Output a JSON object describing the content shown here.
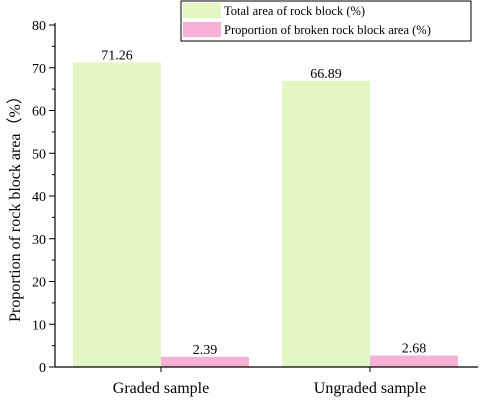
{
  "chart_data": {
    "type": "bar",
    "title": "",
    "xlabel": "",
    "ylabel": "Proportion of rock block area（%）",
    "categories": [
      "Graded sample",
      "Ungraded sample"
    ],
    "series": [
      {
        "name": "Total area of rock block (%)",
        "values": [
          71.26,
          66.89
        ],
        "data_labels": [
          "71.26",
          "66.89"
        ],
        "color": "#e3f6c3"
      },
      {
        "name": "Proportion of broken rock block area (%)",
        "values": [
          2.39,
          2.68
        ],
        "data_labels": [
          "2.39",
          "2.68"
        ],
        "color": "#f7b0d6"
      }
    ],
    "ylim": [
      0,
      80
    ],
    "yticks": [
      0,
      10,
      20,
      30,
      40,
      50,
      60,
      70,
      80
    ],
    "ytick_labels": [
      "0",
      "10",
      "20",
      "30",
      "40",
      "50",
      "60",
      "70",
      "80"
    ],
    "grid": false,
    "legend_position": "top-right"
  }
}
